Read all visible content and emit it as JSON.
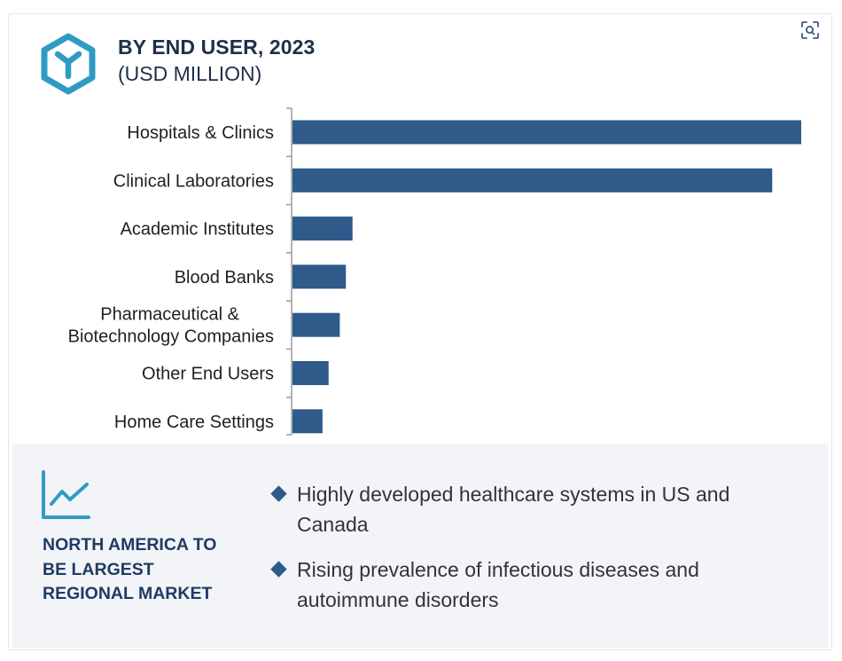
{
  "header": {
    "title": "BY END USER, 2023",
    "subtitle": "(USD MILLION)",
    "logo_icon": "hexagon-y-logo-icon",
    "zoom_icon": "focus-zoom-icon"
  },
  "colors": {
    "bar": "#2e5b8a",
    "title": "#1e2f4a",
    "logo": "#2e9cc2",
    "panel_bg": "#f2f4f8",
    "region_title": "#1f3b63"
  },
  "chart_data": {
    "type": "bar",
    "orientation": "horizontal",
    "title": "BY END USER, 2023",
    "subtitle": "(USD MILLION)",
    "categories": [
      "Hospitals & Clinics",
      "Clinical Laboratories",
      "Academic Institutes",
      "Blood Banks",
      "Pharmaceutical & Biotechnology Companies",
      "Other End Users",
      "Home Care Settings"
    ],
    "category_lines": [
      [
        "Hospitals & Clinics"
      ],
      [
        "Clinical Laboratories"
      ],
      [
        "Academic Institutes"
      ],
      [
        "Blood Banks"
      ],
      [
        "Pharmaceutical &",
        "Biotechnology Companies"
      ],
      [
        "Other End Users"
      ],
      [
        "Home Care Settings"
      ]
    ],
    "values": [
      100,
      94.3,
      11.8,
      10.5,
      9.3,
      7.1,
      5.9
    ],
    "xlim": [
      0,
      100
    ],
    "grid": false,
    "legend": "none",
    "axis_labels_shown": false
  },
  "insights": {
    "icon": "line-trend-icon",
    "region_title_lines": [
      "NORTH AMERICA TO",
      "BE LARGEST",
      "REGIONAL MARKET"
    ],
    "bullets": [
      "Highly developed healthcare systems in US and Canada",
      "Rising prevalence of infectious diseases and autoimmune disorders"
    ]
  }
}
